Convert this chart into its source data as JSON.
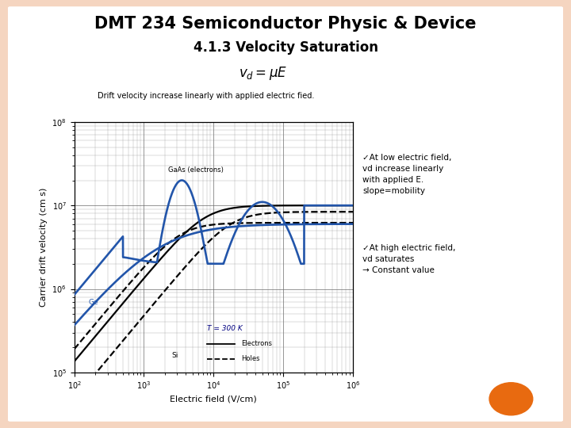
{
  "title": "DMT 234 Semiconductor Physic & Device",
  "subtitle": "4.1.3 Velocity Saturation",
  "formula": "$v_d = \\mu E$",
  "caption": "Drift velocity increase linearly with applied electric fied.",
  "xlabel": "Electric field (V/cm)",
  "ylabel": "Carrier drift velocity (cm s)",
  "annotation_low": "✓At low electric field,\nvd increase linearly\nwith applied E.\nslope=mobility",
  "annotation_high": "✓At high electric field,\nvd saturates\n→ Constant value",
  "legend_T": "T = 300 K",
  "legend_electrons": "Electrons",
  "legend_holes": "Holes",
  "label_GaAs": "GaAs (electrons)",
  "label_Ge": "Ge",
  "label_Si": "Si",
  "bg_color": "#f5d5c0",
  "slide_bg": "#ffffff",
  "blue_color": "#2255AA",
  "black_color": "#000000",
  "title_fontsize": 15,
  "subtitle_fontsize": 12,
  "xmin": 100,
  "xmax": 1000000,
  "ymin": 100000,
  "ymax": 100000000,
  "orange_circle_color": "#E86A10"
}
